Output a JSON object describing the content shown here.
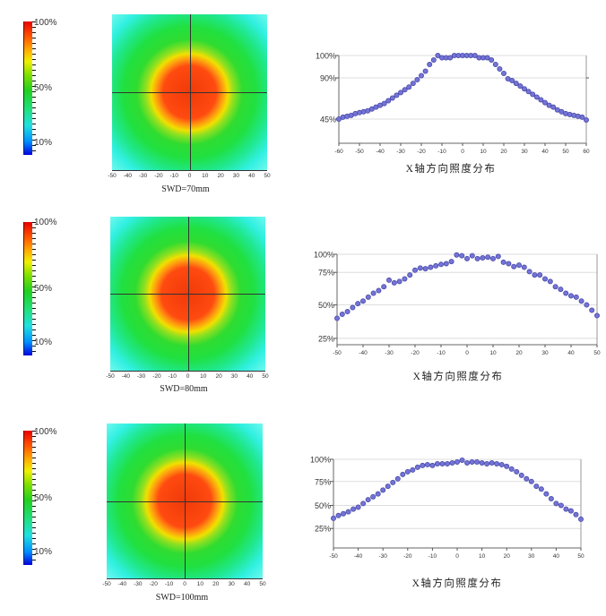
{
  "colorbar": {
    "labels": [
      "100%",
      "50%",
      "10%"
    ]
  },
  "heatmaps": [
    {
      "label": "SWD=70mm",
      "x_ticks": [
        "-50",
        "-40",
        "-30",
        "-20",
        "-10",
        "0",
        "10",
        "20",
        "30",
        "40",
        "50"
      ]
    },
    {
      "label": "SWD=80mm",
      "x_ticks": [
        "-50",
        "-40",
        "-30",
        "-20",
        "-10",
        "0",
        "10",
        "20",
        "30",
        "40",
        "50"
      ]
    },
    {
      "label": "SWD=100mm",
      "x_ticks": [
        "-50",
        "-40",
        "-30",
        "-20",
        "-10",
        "0",
        "10",
        "20",
        "30",
        "40",
        "50"
      ]
    }
  ],
  "colors": {
    "point_fill": "#7474d8",
    "point_stroke": "#4a4aa8",
    "grid": "#dddddd"
  },
  "chart_data": [
    {
      "type": "scatter",
      "title": "X轴方向照度分布",
      "xlim": [
        -60,
        60
      ],
      "x_ticks": [
        -60,
        -50,
        -40,
        -30,
        -20,
        -10,
        0,
        10,
        20,
        30,
        40,
        50,
        60
      ],
      "y_ticks": [
        {
          "value": 100,
          "label": "100%"
        },
        {
          "value": 90,
          "label": "90%"
        },
        {
          "value": 45,
          "label": "45%"
        }
      ],
      "x": [
        -60,
        -58,
        -56,
        -54,
        -52,
        -50,
        -48,
        -46,
        -44,
        -42,
        -40,
        -38,
        -36,
        -34,
        -32,
        -30,
        -28,
        -26,
        -24,
        -22,
        -20,
        -18,
        -16,
        -14,
        -12,
        -10,
        -8,
        -6,
        -4,
        -2,
        0,
        2,
        4,
        6,
        8,
        10,
        12,
        14,
        16,
        18,
        20,
        22,
        24,
        26,
        28,
        30,
        32,
        34,
        36,
        38,
        40,
        42,
        44,
        46,
        48,
        50,
        52,
        54,
        56,
        58,
        60
      ],
      "y": [
        45,
        47,
        48,
        49,
        51,
        52,
        53,
        54,
        56,
        58,
        60,
        62,
        65,
        68,
        71,
        74,
        77,
        80,
        84,
        88,
        91,
        93,
        96,
        98,
        100,
        99,
        99,
        99,
        100,
        100,
        100,
        100,
        100,
        100,
        99,
        99,
        99,
        98,
        96,
        94,
        92,
        89,
        87,
        84,
        81,
        78,
        75,
        72,
        69,
        66,
        63,
        60,
        58,
        55,
        53,
        51,
        50,
        49,
        48,
        47,
        44
      ]
    },
    {
      "type": "scatter",
      "title": "X轴方向照度分布",
      "xlim": [
        -50,
        50
      ],
      "x_ticks": [
        -50,
        -40,
        -30,
        -20,
        -10,
        0,
        10,
        20,
        30,
        40,
        50
      ],
      "y_ticks": [
        {
          "value": 100,
          "label": "100%"
        },
        {
          "value": 75,
          "label": "75%"
        },
        {
          "value": 50,
          "label": "50%"
        },
        {
          "value": 25,
          "label": "25%"
        }
      ],
      "x": [
        -50,
        -48,
        -46,
        -44,
        -42,
        -40,
        -38,
        -36,
        -34,
        -32,
        -30,
        -28,
        -26,
        -24,
        -22,
        -20,
        -18,
        -16,
        -14,
        -12,
        -10,
        -8,
        -6,
        -4,
        -2,
        0,
        2,
        4,
        6,
        8,
        10,
        12,
        14,
        16,
        18,
        20,
        22,
        24,
        26,
        28,
        30,
        32,
        34,
        36,
        38,
        40,
        42,
        44,
        46,
        48,
        50
      ],
      "y": [
        40,
        43,
        45,
        48,
        51,
        53,
        56,
        59,
        61,
        64,
        69,
        67,
        68,
        70,
        73,
        78,
        81,
        80,
        82,
        84,
        86,
        87,
        90,
        99,
        98,
        94,
        98,
        94,
        95,
        96,
        94,
        97,
        89,
        87,
        83,
        85,
        82,
        76,
        73,
        73,
        70,
        68,
        64,
        62,
        59,
        57,
        56,
        53,
        50,
        46,
        42
      ]
    },
    {
      "type": "scatter",
      "title": "X轴方向照度分布",
      "xlim": [
        -50,
        50
      ],
      "x_ticks": [
        -50,
        -40,
        -30,
        -20,
        -10,
        0,
        10,
        20,
        30,
        40,
        50
      ],
      "y_ticks": [
        {
          "value": 100,
          "label": "100%"
        },
        {
          "value": 75,
          "label": "75%"
        },
        {
          "value": 50,
          "label": "50%"
        },
        {
          "value": 25,
          "label": "25%"
        }
      ],
      "x": [
        -50,
        -48,
        -46,
        -44,
        -42,
        -40,
        -38,
        -36,
        -34,
        -32,
        -30,
        -28,
        -26,
        -24,
        -22,
        -20,
        -18,
        -16,
        -14,
        -12,
        -10,
        -8,
        -6,
        -4,
        -2,
        0,
        2,
        4,
        6,
        8,
        10,
        12,
        14,
        16,
        18,
        20,
        22,
        24,
        26,
        28,
        30,
        32,
        34,
        36,
        38,
        40,
        42,
        44,
        46,
        48,
        50
      ],
      "y": [
        36,
        39,
        41,
        43,
        46,
        48,
        52,
        56,
        59,
        62,
        66,
        70,
        74,
        78,
        83,
        86,
        88,
        91,
        93,
        94,
        93,
        95,
        95,
        95,
        96,
        97,
        99,
        96,
        97,
        97,
        96,
        95,
        96,
        95,
        94,
        92,
        89,
        86,
        82,
        78,
        75,
        70,
        67,
        62,
        57,
        52,
        50,
        46,
        44,
        40,
        35
      ]
    }
  ]
}
